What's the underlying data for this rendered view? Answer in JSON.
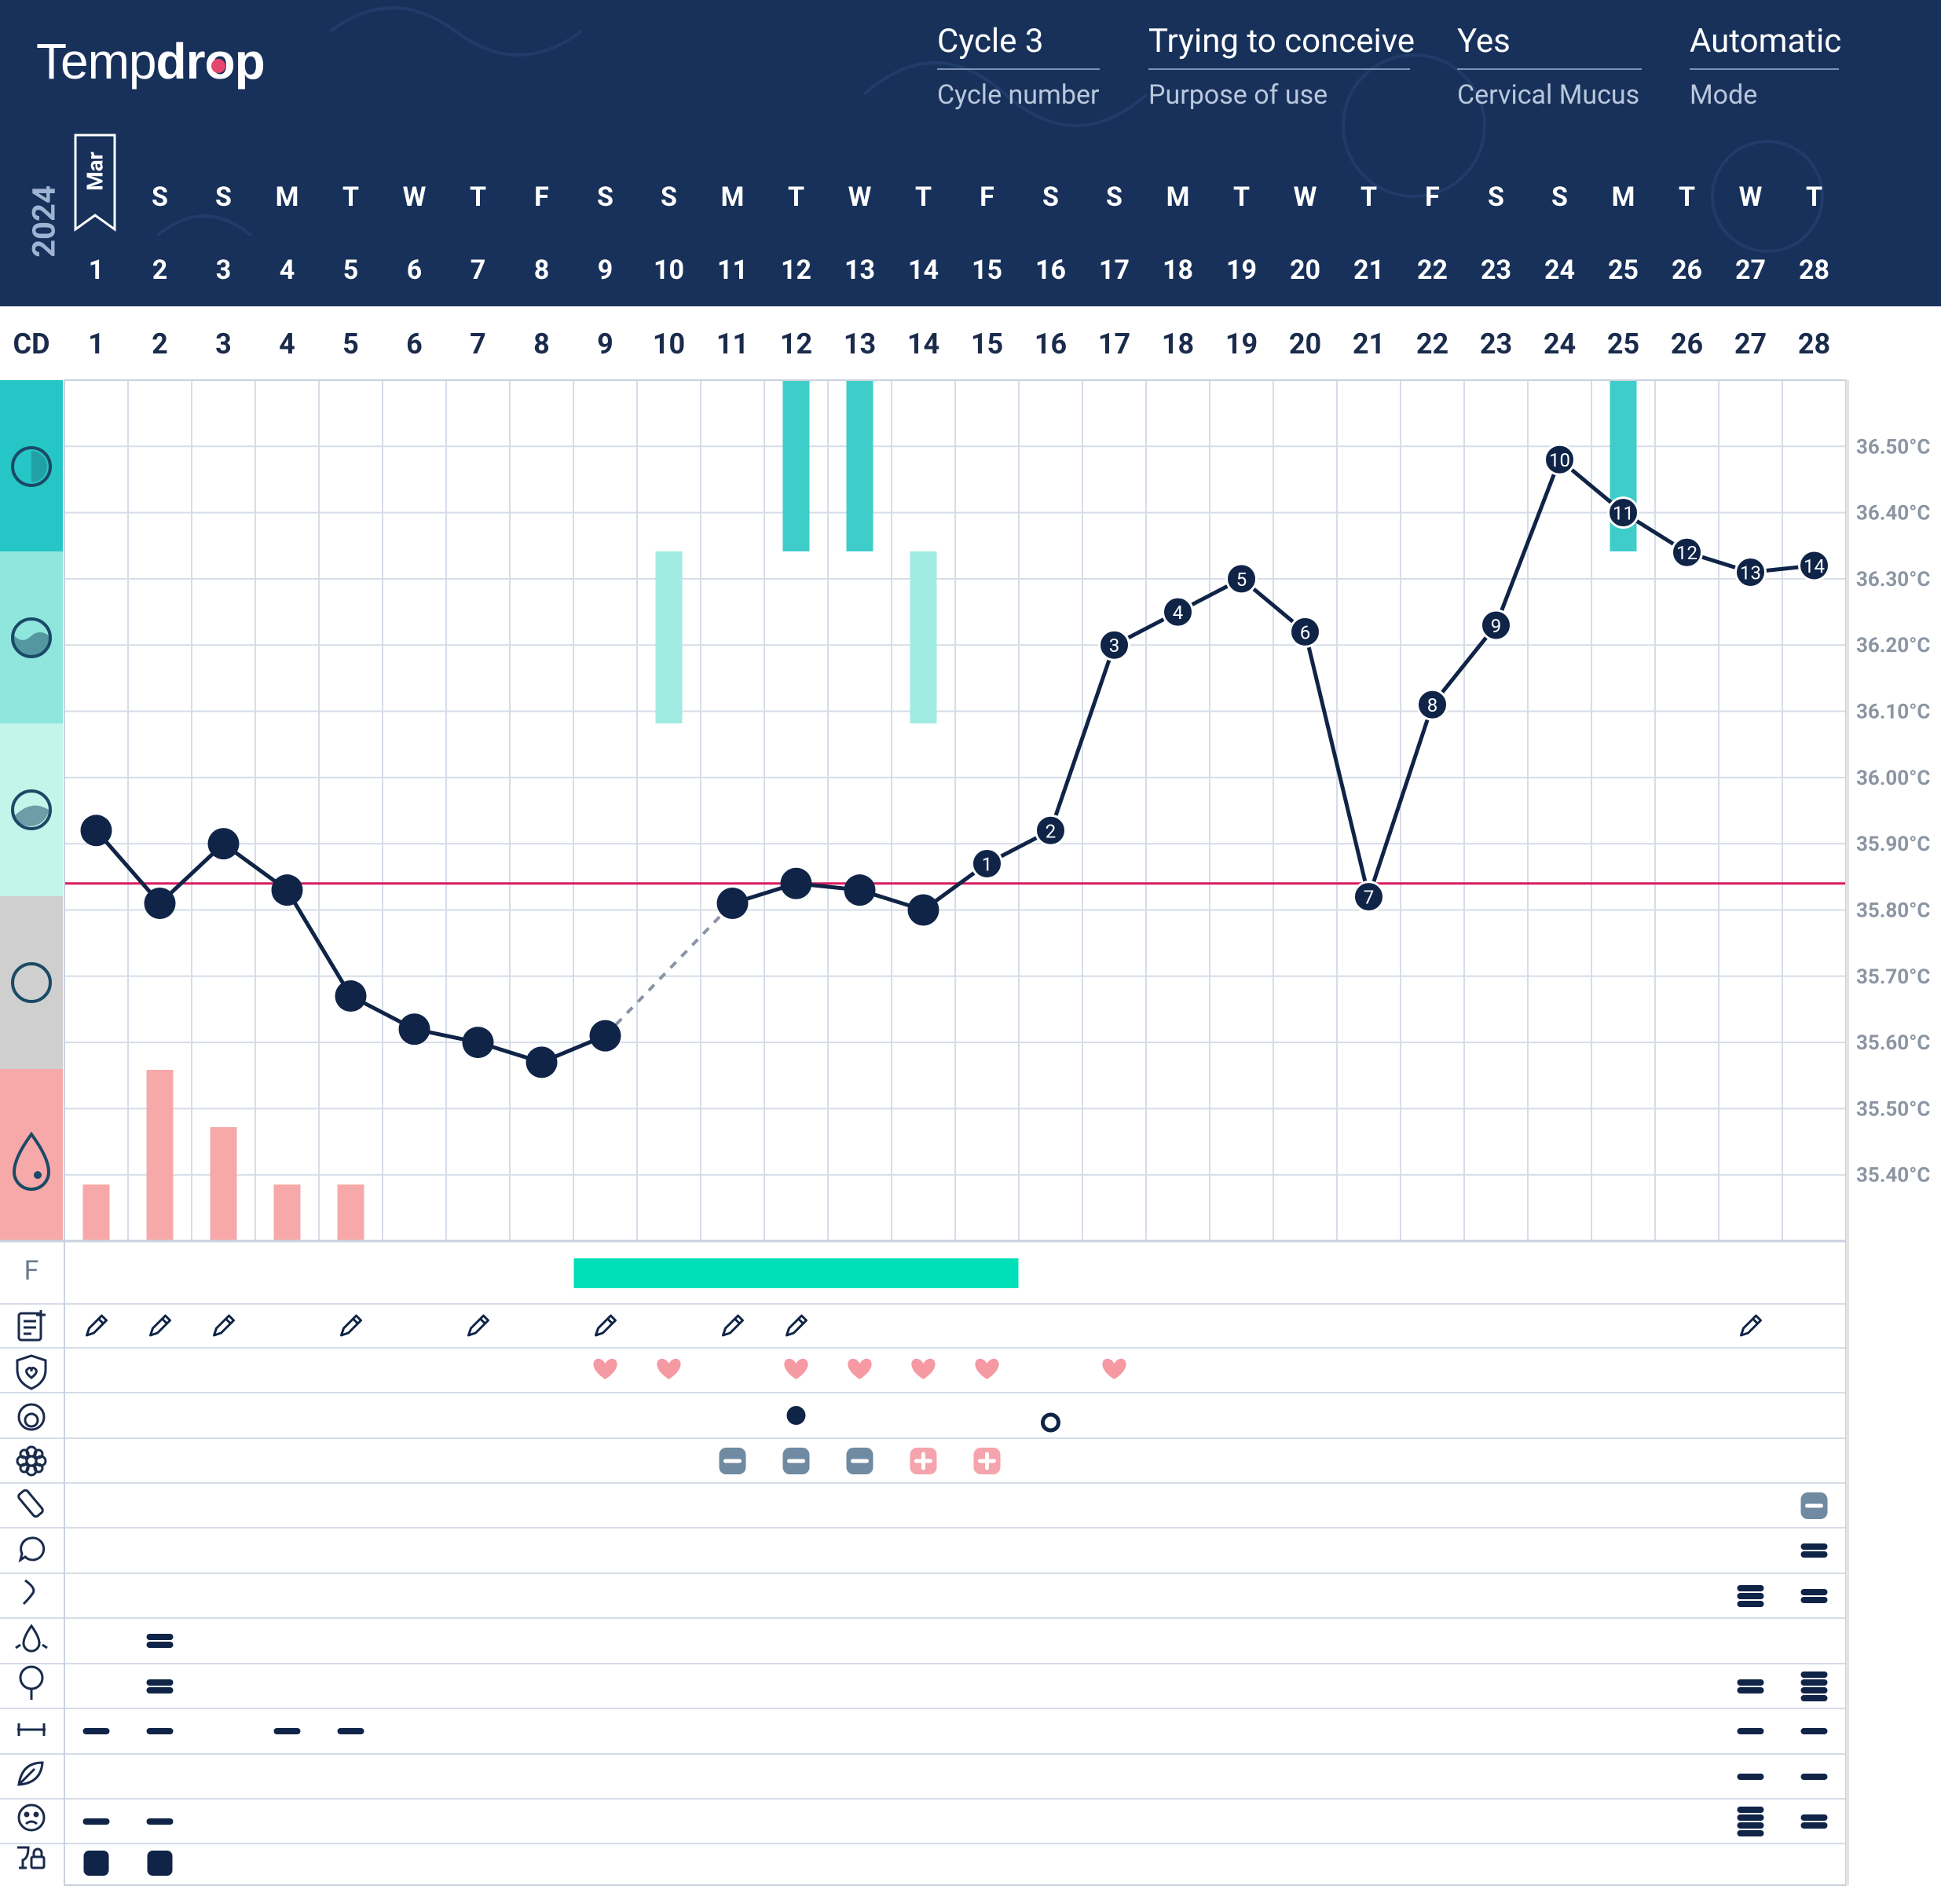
{
  "header": {
    "logo_text": "Tempdrop",
    "fields": [
      {
        "value": "Cycle 3",
        "label": "Cycle number"
      },
      {
        "value": "Trying to conceive",
        "label": "Purpose of use"
      },
      {
        "value": "Yes",
        "label": "Cervical Mucus"
      },
      {
        "value": "Automatic",
        "label": "Mode"
      }
    ],
    "year": "2024",
    "month": "Mar",
    "cd_label": "CD",
    "fertile_label": "F"
  },
  "colors": {
    "header_bg": "#17315a",
    "line": "#0f2447",
    "coverline": "#d81b60",
    "period": "#f7a8a8",
    "fertile": "#00e0b8",
    "mucus_dark": "#26c6c6",
    "mucus_mid": "#8fe6dc",
    "mucus_light": "#c3f5ea",
    "mucus_gray": "#cfcfcf",
    "grid": "#d6dde8"
  },
  "chart_data": {
    "type": "line",
    "days": [
      1,
      2,
      3,
      4,
      5,
      6,
      7,
      8,
      9,
      10,
      11,
      12,
      13,
      14,
      15,
      16,
      17,
      18,
      19,
      20,
      21,
      22,
      23,
      24,
      25,
      26,
      27,
      28
    ],
    "weekdays": [
      "",
      "S",
      "S",
      "M",
      "T",
      "W",
      "T",
      "F",
      "S",
      "S",
      "M",
      "T",
      "W",
      "T",
      "F",
      "S",
      "S",
      "M",
      "T",
      "W",
      "T",
      "F",
      "S",
      "S",
      "M",
      "T",
      "W",
      "T"
    ],
    "y_ticks": [
      "36.50°C",
      "36.40°C",
      "36.30°C",
      "36.20°C",
      "36.10°C",
      "36.00°C",
      "35.90°C",
      "35.80°C",
      "35.70°C",
      "35.60°C",
      "35.50°C",
      "35.40°C"
    ],
    "ylim": [
      35.3,
      36.6
    ],
    "coverline": 35.84,
    "series": [
      {
        "temperatures": [
          35.92,
          35.81,
          35.9,
          35.83,
          35.67,
          35.62,
          35.6,
          35.57,
          35.61,
          null,
          35.81,
          35.84,
          35.83,
          35.8,
          35.87,
          35.92,
          36.2,
          36.25,
          36.3,
          36.22,
          35.82,
          36.11,
          36.23,
          36.48,
          36.4,
          36.34,
          36.31,
          36.32
        ],
        "point_labels": [
          "",
          "",
          "",
          "",
          "",
          "",
          "",
          "",
          "",
          "",
          "",
          "",
          "",
          "",
          "1",
          "2",
          "3",
          "4",
          "5",
          "6",
          "7",
          "8",
          "9",
          "10",
          "11",
          "12",
          "13",
          "14"
        ],
        "dashed_gap": [
          9,
          11
        ]
      }
    ],
    "period_flow": [
      1,
      3,
      2,
      1,
      1,
      0,
      0,
      0,
      0,
      0,
      0,
      0,
      0,
      0,
      0,
      0,
      0,
      0,
      0,
      0,
      0,
      0,
      0,
      0,
      0,
      0,
      0,
      0
    ],
    "cervical_mucus": [
      {
        "day": 10,
        "level": 2
      },
      {
        "day": 12,
        "level": 1
      },
      {
        "day": 13,
        "level": 1
      },
      {
        "day": 14,
        "level": 2
      },
      {
        "day": 25,
        "level": 1
      }
    ],
    "fertile_window": [
      9,
      15
    ],
    "notes_days": [
      1,
      2,
      3,
      5,
      7,
      9,
      11,
      12,
      27
    ],
    "intercourse_days": [
      9,
      10,
      12,
      13,
      14,
      15,
      17
    ],
    "cervix_marks": [
      {
        "day": 12,
        "type": "filled"
      },
      {
        "day": 16,
        "type": "open"
      }
    ],
    "ovulation_tests": [
      {
        "day": 11,
        "result": "negative"
      },
      {
        "day": 12,
        "result": "negative"
      },
      {
        "day": 13,
        "result": "negative"
      },
      {
        "day": 14,
        "result": "positive"
      },
      {
        "day": 15,
        "result": "positive"
      }
    ],
    "pregnancy_tests": [
      {
        "day": 28,
        "result": "negative"
      }
    ],
    "symptom_rows": [
      {
        "icon": "speech-bubble-icon",
        "marks": [
          {
            "day": 28,
            "level": 2
          }
        ]
      },
      {
        "icon": "arrow-icon",
        "marks": [
          {
            "day": 27,
            "level": 3
          },
          {
            "day": 28,
            "level": 2
          }
        ]
      },
      {
        "icon": "droplet-splash-icon",
        "marks": [
          {
            "day": 2,
            "level": 2
          }
        ]
      },
      {
        "icon": "pin-icon",
        "marks": [
          {
            "day": 2,
            "level": 2
          },
          {
            "day": 27,
            "level": 2
          },
          {
            "day": 28,
            "level": 4
          }
        ]
      },
      {
        "icon": "dumbbell-icon",
        "marks": [
          {
            "day": 1,
            "level": 1
          },
          {
            "day": 2,
            "level": 1
          },
          {
            "day": 4,
            "level": 1
          },
          {
            "day": 5,
            "level": 1
          },
          {
            "day": 27,
            "level": 1
          },
          {
            "day": 28,
            "level": 1
          }
        ]
      },
      {
        "icon": "leaf-icon",
        "marks": [
          {
            "day": 27,
            "level": 1
          },
          {
            "day": 28,
            "level": 1
          }
        ]
      },
      {
        "icon": "face-icon",
        "marks": [
          {
            "day": 1,
            "level": 1
          },
          {
            "day": 2,
            "level": 1
          },
          {
            "day": 27,
            "level": 4
          },
          {
            "day": 28,
            "level": 2
          }
        ]
      },
      {
        "icon": "wine-lock-icon",
        "marks": [
          {
            "day": 1,
            "level": "square"
          },
          {
            "day": 2,
            "level": "square"
          }
        ]
      }
    ]
  }
}
